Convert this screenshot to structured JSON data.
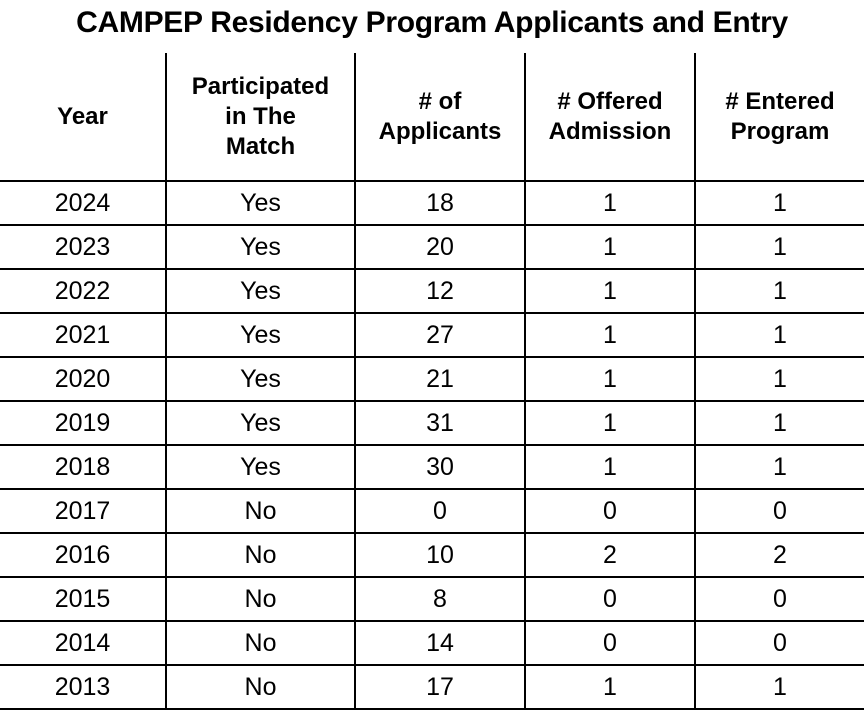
{
  "title": "CAMPEP Residency Program Applicants and Entry",
  "table": {
    "headers": [
      [
        "Year"
      ],
      [
        "Participated",
        "in The",
        "Match"
      ],
      [
        "# of",
        "Applicants"
      ],
      [
        "# Offered",
        "Admission"
      ],
      [
        "# Entered",
        "Program"
      ]
    ],
    "rows": [
      [
        2024,
        "Yes",
        18,
        1,
        1
      ],
      [
        2023,
        "Yes",
        20,
        1,
        1
      ],
      [
        2022,
        "Yes",
        12,
        1,
        1
      ],
      [
        2021,
        "Yes",
        27,
        1,
        1
      ],
      [
        2020,
        "Yes",
        21,
        1,
        1
      ],
      [
        2019,
        "Yes",
        31,
        1,
        1
      ],
      [
        2018,
        "Yes",
        30,
        1,
        1
      ],
      [
        2017,
        "No",
        0,
        0,
        0
      ],
      [
        2016,
        "No",
        10,
        2,
        2
      ],
      [
        2015,
        "No",
        8,
        0,
        0
      ],
      [
        2014,
        "No",
        14,
        0,
        0
      ],
      [
        2013,
        "No",
        17,
        1,
        1
      ]
    ]
  }
}
